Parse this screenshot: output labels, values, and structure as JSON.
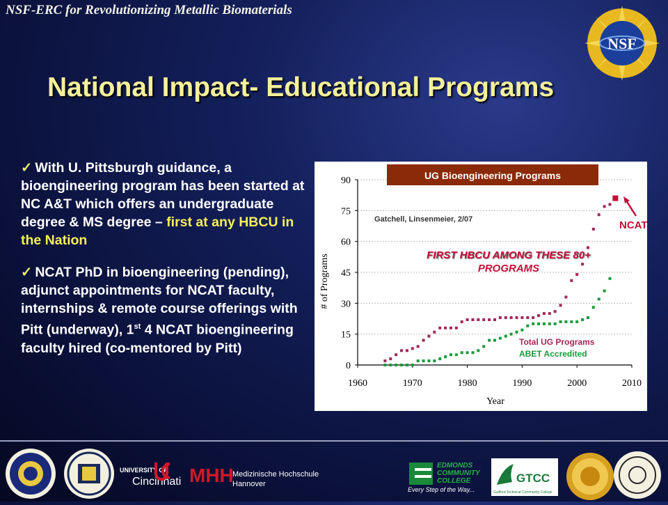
{
  "slide": {
    "header": "NSF-ERC for Revolutionizing Metallic Biomaterials",
    "title": "National Impact- Educational Programs",
    "bullets": [
      {
        "text_main": "With U. Pittsburgh guidance, a bioengineering program has been started at NC A&T which offers an undergraduate degree & MS degree – ",
        "text_highlight": "first at any HBCU in the Nation"
      },
      {
        "text_a": "NCAT PhD in bioengineering (pending), adjunct appointments for NCAT faculty, internships & remote course offerings with Pitt (underway), 1",
        "text_sup": "st",
        "text_b": "  4 NCAT bioengineering faculty hired (co-mentored by Pitt)"
      }
    ],
    "nsf_logo_text": "NSF",
    "footer_logos": [
      {
        "name": "North Carolina A&T seal",
        "text": ""
      },
      {
        "name": "University of Pittsburgh seal",
        "text": ""
      },
      {
        "name": "University of Cincinnati",
        "text_line1": "UNIVERSITY OF",
        "text_line2": "Cincinnati"
      },
      {
        "name": "MHH",
        "text_mark": "MHH",
        "text_line1": "Medizinische Hochschule",
        "text_line2": "Hannover"
      },
      {
        "name": "Edmonds Community College",
        "text_line1": "EDMONDS",
        "text_line2": "COMMUNITY",
        "text_line3": "COLLEGE",
        "text_line4": "Every Step of the Way..."
      },
      {
        "name": "GTCC",
        "text_mark": "GTCC",
        "text_sub": "Guilford Technical Community College"
      },
      {
        "name": "gold seal",
        "text": ""
      },
      {
        "name": "Indian Institute of Technology seal",
        "text": ""
      }
    ],
    "colors": {
      "title": "#f4f09a",
      "highlight": "#f6f05a",
      "total_series": "#a0285a",
      "abet_series": "#1a9a3a",
      "ncat_marker": "#c0103a",
      "banner_bg": "#8a2a08"
    }
  },
  "chart_data": {
    "type": "scatter",
    "title": "UG Bioengineering Programs",
    "source_note": "Gatchell, Linsenmeier, 2/07",
    "xlabel": "Year",
    "ylabel": "# of Programs",
    "xlim": [
      1960,
      2010
    ],
    "ylim": [
      0,
      90
    ],
    "xticks": [
      1960,
      1970,
      1980,
      1990,
      2000,
      2010
    ],
    "yticks": [
      0,
      15,
      30,
      45,
      60,
      75,
      90
    ],
    "annotation": "FIRST HBCU AMONG THESE 80+ PROGRAMS",
    "ncat_label": "NCAT",
    "ncat_point": {
      "x": 2007,
      "y": 81
    },
    "legend": {
      "line1": "Total UG Programs",
      "line2": "ABET Accredited"
    },
    "series": [
      {
        "name": "Total UG Programs",
        "x": [
          1965,
          1966,
          1967,
          1968,
          1969,
          1970,
          1971,
          1972,
          1973,
          1974,
          1975,
          1976,
          1977,
          1978,
          1979,
          1980,
          1981,
          1982,
          1983,
          1984,
          1985,
          1986,
          1987,
          1988,
          1989,
          1990,
          1991,
          1992,
          1993,
          1994,
          1995,
          1996,
          1997,
          1998,
          1999,
          2000,
          2001,
          2002,
          2003,
          2004,
          2005,
          2006
        ],
        "y": [
          2,
          3,
          5,
          7,
          7,
          8,
          9,
          12,
          14,
          16,
          18,
          18,
          18,
          18,
          21,
          22,
          22,
          22,
          22,
          22,
          22,
          23,
          23,
          23,
          23,
          23,
          23,
          23,
          24,
          25,
          25,
          26,
          29,
          33,
          41,
          44,
          49,
          57,
          66,
          73,
          77,
          78
        ]
      },
      {
        "name": "ABET Accredited",
        "x": [
          1965,
          1966,
          1967,
          1968,
          1969,
          1970,
          1971,
          1972,
          1973,
          1974,
          1975,
          1976,
          1977,
          1978,
          1979,
          1980,
          1981,
          1982,
          1983,
          1984,
          1985,
          1986,
          1987,
          1988,
          1989,
          1990,
          1991,
          1992,
          1993,
          1994,
          1995,
          1996,
          1997,
          1998,
          1999,
          2000,
          2001,
          2002,
          2003,
          2004,
          2005,
          2006
        ],
        "y": [
          0,
          0,
          0,
          0,
          0,
          0,
          2,
          2,
          2,
          2,
          3,
          4,
          5,
          5,
          6,
          6,
          6,
          7,
          9,
          12,
          12,
          13,
          14,
          15,
          16,
          17,
          19,
          20,
          20,
          20,
          20,
          20,
          21,
          21,
          21,
          21,
          22,
          23,
          28,
          32,
          36,
          42
        ]
      }
    ]
  }
}
